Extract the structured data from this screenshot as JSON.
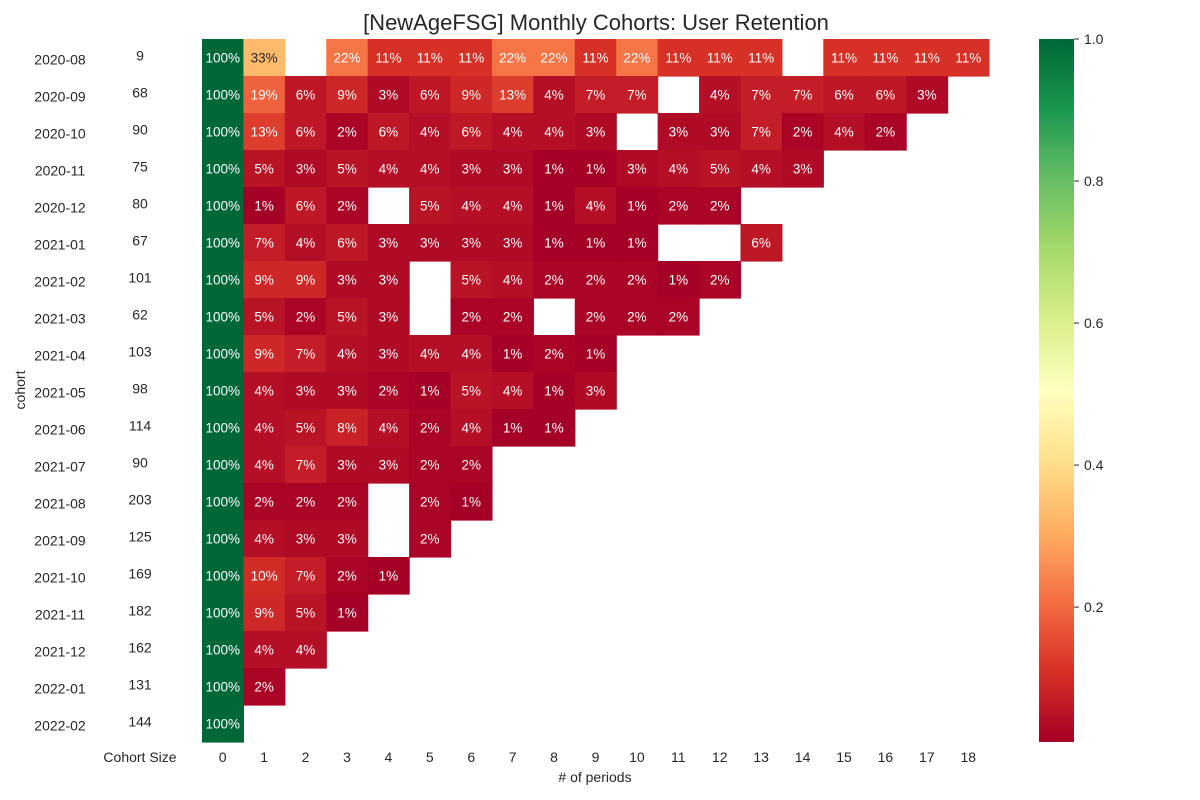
{
  "chart_data": {
    "type": "heatmap",
    "title": "[NewAgeFSG] Monthly Cohorts: User Retention",
    "xlabel": "# of periods",
    "ylabel": "cohort",
    "size_header": "Cohort Size",
    "periods": [
      0,
      1,
      2,
      3,
      4,
      5,
      6,
      7,
      8,
      9,
      10,
      11,
      12,
      13,
      14,
      15,
      16,
      17,
      18
    ],
    "cohorts": [
      "2020-08",
      "2020-09",
      "2020-10",
      "2020-11",
      "2020-12",
      "2021-01",
      "2021-02",
      "2021-03",
      "2021-04",
      "2021-05",
      "2021-06",
      "2021-07",
      "2021-08",
      "2021-09",
      "2021-10",
      "2021-11",
      "2021-12",
      "2022-01",
      "2022-02"
    ],
    "cohort_sizes": [
      9,
      68,
      90,
      75,
      80,
      67,
      101,
      62,
      103,
      98,
      114,
      90,
      203,
      125,
      169,
      182,
      162,
      131,
      144
    ],
    "retention": [
      [
        1.0,
        0.33,
        null,
        0.22,
        0.11,
        0.11,
        0.11,
        0.22,
        0.22,
        0.11,
        0.22,
        0.11,
        0.11,
        0.11,
        null,
        0.11,
        0.11,
        0.11,
        0.11
      ],
      [
        1.0,
        0.19,
        0.06,
        0.09,
        0.03,
        0.06,
        0.09,
        0.13,
        0.04,
        0.07,
        0.07,
        null,
        0.04,
        0.07,
        0.07,
        0.06,
        0.06,
        0.03
      ],
      [
        1.0,
        0.13,
        0.06,
        0.02,
        0.06,
        0.04,
        0.06,
        0.04,
        0.04,
        0.03,
        null,
        0.03,
        0.03,
        0.07,
        0.02,
        0.04,
        0.02
      ],
      [
        1.0,
        0.05,
        0.03,
        0.05,
        0.04,
        0.04,
        0.03,
        0.03,
        0.01,
        0.01,
        0.03,
        0.04,
        0.05,
        0.04,
        0.03
      ],
      [
        1.0,
        0.01,
        0.06,
        0.02,
        null,
        0.05,
        0.04,
        0.04,
        0.01,
        0.04,
        0.01,
        0.02,
        0.02
      ],
      [
        1.0,
        0.07,
        0.04,
        0.06,
        0.03,
        0.03,
        0.03,
        0.03,
        0.01,
        0.01,
        0.01,
        null,
        null,
        0.06
      ],
      [
        1.0,
        0.09,
        0.09,
        0.03,
        0.03,
        null,
        0.05,
        0.04,
        0.02,
        0.02,
        0.02,
        0.01,
        0.02
      ],
      [
        1.0,
        0.05,
        0.02,
        0.05,
        0.03,
        null,
        0.02,
        0.02,
        null,
        0.02,
        0.02,
        0.02
      ],
      [
        1.0,
        0.09,
        0.07,
        0.04,
        0.03,
        0.04,
        0.04,
        0.01,
        0.02,
        0.01
      ],
      [
        1.0,
        0.04,
        0.03,
        0.03,
        0.02,
        0.01,
        0.05,
        0.04,
        0.01,
        0.03
      ],
      [
        1.0,
        0.04,
        0.05,
        0.08,
        0.04,
        0.02,
        0.04,
        0.01,
        0.01
      ],
      [
        1.0,
        0.04,
        0.07,
        0.03,
        0.03,
        0.02,
        0.02
      ],
      [
        1.0,
        0.02,
        0.02,
        0.02,
        null,
        0.02,
        0.01
      ],
      [
        1.0,
        0.04,
        0.03,
        0.03,
        null,
        0.02
      ],
      [
        1.0,
        0.1,
        0.07,
        0.02,
        0.01
      ],
      [
        1.0,
        0.09,
        0.05,
        0.01
      ],
      [
        1.0,
        0.04,
        0.04
      ],
      [
        1.0,
        0.02
      ],
      [
        1.0
      ]
    ],
    "colormap": "RdYlGn",
    "colorbar": {
      "range": [
        0.01,
        1.0
      ],
      "ticks": [
        0.2,
        0.4,
        0.6,
        0.8,
        1.0
      ],
      "tick_labels": [
        "0.2",
        "0.4",
        "0.6",
        "0.8",
        "1.0"
      ]
    },
    "annotation_format": "percent"
  }
}
